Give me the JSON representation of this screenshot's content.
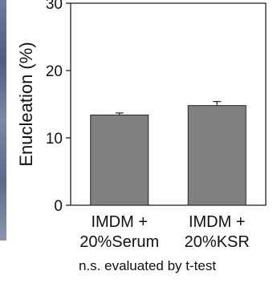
{
  "chart_data": {
    "type": "bar",
    "categories": [
      "IMDM + 20%Serum",
      "IMDM + 20%KSR"
    ],
    "category_lines": [
      [
        "IMDM +",
        "20%Serum"
      ],
      [
        "IMDM +",
        "20%KSR"
      ]
    ],
    "values": [
      13.4,
      14.8
    ],
    "errors": [
      0.3,
      0.6
    ],
    "ylabel": "Enucleation (%)",
    "xlabel": "",
    "title": "",
    "ylim": [
      0,
      30
    ],
    "yticks": [
      0,
      10,
      20,
      30
    ],
    "bar_color": "#808080",
    "grid": false,
    "footnote": "n.s. evaluated by t-test"
  }
}
